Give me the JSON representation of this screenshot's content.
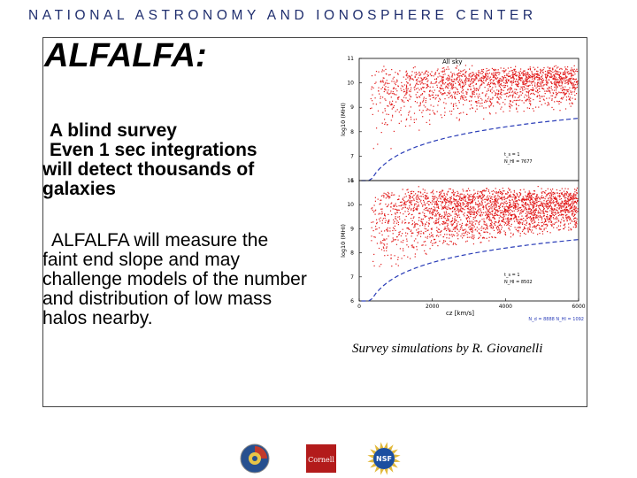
{
  "header": {
    "text": "NATIONAL ASTRONOMY AND IONOSPHERE CENTER"
  },
  "slide": {
    "title": "ALFALFA:",
    "bullet1": "A blind survey",
    "bullet2_line1": "Even 1 sec integrations",
    "bullet2_rest": "will detect thousands of galaxies",
    "bullet3_line1": "ALFALFA will measure the",
    "bullet3_rest": "faint end slope and may challenge models of the number and distribution of low mass halos nearby."
  },
  "figure": {
    "caption": "Survey simulations by R. Giovanelli",
    "top_panel_label": "All sky",
    "ylabel": "log10 (MHI)",
    "xlabel": "cz [km/s]",
    "y_ticks": [
      "6",
      "7",
      "8",
      "9",
      "10",
      "11"
    ],
    "x_ticks": [
      "0",
      "2000",
      "4000",
      "6000"
    ],
    "top_annotation_1": "t_s = 1",
    "top_annotation_2": "N_HI = 7677",
    "bottom_annotation_1": "t_s = 1",
    "bottom_annotation_2": "N_HI = 8502",
    "footer_annotation": "N_d = 8888   N_HI = 1092",
    "point_color": "#e21b1b",
    "curve_color": "#2a3db8"
  },
  "logos": [
    {
      "name": "naic-seal-logo",
      "colors": [
        "#c23a2b",
        "#27508f",
        "#e8c547"
      ]
    },
    {
      "name": "cornell-logo",
      "text": "Cornell",
      "color": "#b31b1b"
    },
    {
      "name": "nsf-logo",
      "text": "NSF",
      "colors": [
        "#1b4fa0",
        "#e2b93b"
      ]
    }
  ]
}
